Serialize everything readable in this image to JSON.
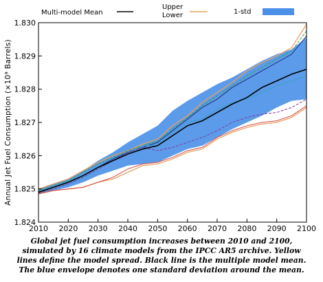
{
  "chart_data": {
    "type": "line",
    "ylabel": "Annual Jet Fuel Consumption (×10⁹ Barrels)",
    "xlim": [
      2010,
      2100
    ],
    "ylim": [
      1.824,
      1.83
    ],
    "x_ticks": [
      "2010",
      "2020",
      "2030",
      "2040",
      "2050",
      "2060",
      "2070",
      "2080",
      "2090",
      "2100"
    ],
    "y_ticks": [
      "1.824",
      "1.825",
      "1.826",
      "1.827",
      "1.828",
      "1.829",
      "1.830"
    ],
    "legend": {
      "placement": "top",
      "mean_label": "Multi-model Mean",
      "bounds_label_upper": "Upper",
      "bounds_label_lower": "Lower",
      "band_label": "1-std"
    },
    "grid": false,
    "x": [
      2010,
      2015,
      2020,
      2025,
      2030,
      2035,
      2040,
      2045,
      2050,
      2055,
      2060,
      2065,
      2070,
      2075,
      2080,
      2085,
      2090,
      2095,
      2100
    ],
    "series": [
      {
        "name": "Multi-model Mean",
        "color": "#000000",
        "values": [
          1.8249,
          1.82505,
          1.8252,
          1.8254,
          1.82565,
          1.82585,
          1.82605,
          1.8262,
          1.8263,
          1.8266,
          1.8269,
          1.82705,
          1.8273,
          1.82755,
          1.82775,
          1.82805,
          1.82825,
          1.82845,
          1.8286
        ]
      },
      {
        "name": "Upper",
        "color": "#e8a060",
        "values": [
          1.825,
          1.82515,
          1.8253,
          1.82555,
          1.8258,
          1.826,
          1.82615,
          1.82635,
          1.8265,
          1.8269,
          1.8272,
          1.8276,
          1.8279,
          1.8282,
          1.82855,
          1.8288,
          1.829,
          1.82925,
          1.82995
        ]
      },
      {
        "name": "Lower",
        "color": "#e8a060",
        "values": [
          1.82485,
          1.82495,
          1.825,
          1.82505,
          1.8252,
          1.8253,
          1.8255,
          1.8257,
          1.82575,
          1.8259,
          1.8261,
          1.8262,
          1.8265,
          1.8267,
          1.82685,
          1.82695,
          1.827,
          1.82715,
          1.82745
        ]
      },
      {
        "name": "",
        "color": "#2e9e4a",
        "values": [
          1.82495,
          1.8251,
          1.82525,
          1.8255,
          1.82575,
          1.82595,
          1.82615,
          1.8263,
          1.82645,
          1.8268,
          1.82715,
          1.8275,
          1.8278,
          1.8281,
          1.8284,
          1.82865,
          1.8289,
          1.82915,
          1.82975
        ]
      },
      {
        "name": "",
        "color": "#1b2a7a",
        "values": [
          1.8249,
          1.82505,
          1.8252,
          1.8254,
          1.82565,
          1.8259,
          1.8261,
          1.82625,
          1.8264,
          1.82675,
          1.8271,
          1.82745,
          1.8277,
          1.82805,
          1.8283,
          1.82855,
          1.8288,
          1.82905,
          1.8296
        ]
      },
      {
        "name": "",
        "color": "#3aa0c8",
        "values": [
          1.8249,
          1.825,
          1.82515,
          1.82535,
          1.8256,
          1.82585,
          1.82605,
          1.8263,
          1.8263,
          1.8267,
          1.827,
          1.8271,
          1.8274,
          1.8276,
          1.8277,
          1.8279,
          1.8281,
          1.82825,
          1.8284
        ]
      },
      {
        "name": "",
        "color": "#7d3d9c",
        "values": [
          1.82488,
          1.825,
          1.82515,
          1.82535,
          1.8256,
          1.82585,
          1.8261,
          1.82625,
          1.82615,
          1.82625,
          1.8264,
          1.82655,
          1.82675,
          1.827,
          1.82715,
          1.82725,
          1.8273,
          1.82745,
          1.8277
        ]
      },
      {
        "name": "",
        "color": "#d2443a",
        "values": [
          1.82485,
          1.82495,
          1.825,
          1.82505,
          1.8252,
          1.82535,
          1.8256,
          1.82575,
          1.8258,
          1.82595,
          1.82615,
          1.82625,
          1.82655,
          1.82675,
          1.8269,
          1.827,
          1.82705,
          1.8272,
          1.8275
        ]
      }
    ],
    "band": {
      "name": "1-std",
      "color": "#4a90e8",
      "upper": [
        1.825,
        1.82515,
        1.8253,
        1.82555,
        1.82585,
        1.8261,
        1.8264,
        1.82665,
        1.8269,
        1.82735,
        1.82765,
        1.8279,
        1.82815,
        1.82835,
        1.8286,
        1.82885,
        1.82905,
        1.8292,
        1.82955
      ],
      "lower": [
        1.82485,
        1.82495,
        1.82505,
        1.8252,
        1.8254,
        1.82555,
        1.8257,
        1.82575,
        1.8258,
        1.826,
        1.8262,
        1.8263,
        1.82655,
        1.8268,
        1.827,
        1.8272,
        1.82745,
        1.82765,
        1.8277
      ]
    }
  },
  "caption": "Global jet fuel consumption increases between 2010 and 2100, simulated by 16 climate models from the IPCC AR5 archive. Yellow lines define the model spread. Black line is the multiple model mean. The blue envelope denotes one standard deviation around the mean."
}
